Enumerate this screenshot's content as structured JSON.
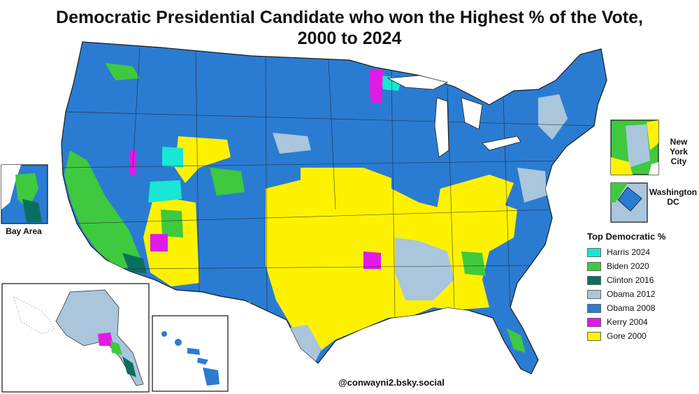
{
  "title": {
    "line1": "Democratic Presidential Candidate who won the Highest % of the Vote,",
    "line2": "2000 to 2024"
  },
  "insets": {
    "bay_area": "Bay Area",
    "nyc": "New York City",
    "dc": "Washington DC"
  },
  "legend": {
    "title": "Top Democratic %",
    "items": [
      {
        "label": "Harris 2024",
        "color": "#19e6d3"
      },
      {
        "label": "Biden 2020",
        "color": "#3fc93f"
      },
      {
        "label": "Clinton 2016",
        "color": "#0b6f5f"
      },
      {
        "label": "Obama 2012",
        "color": "#a9c6dd"
      },
      {
        "label": "Obama 2008",
        "color": "#2a7cd2"
      },
      {
        "label": "Kerry 2004",
        "color": "#e21ae6"
      },
      {
        "label": "Gore 2000",
        "color": "#fff200"
      }
    ]
  },
  "credit": "@conwayni2.bsky.social"
}
